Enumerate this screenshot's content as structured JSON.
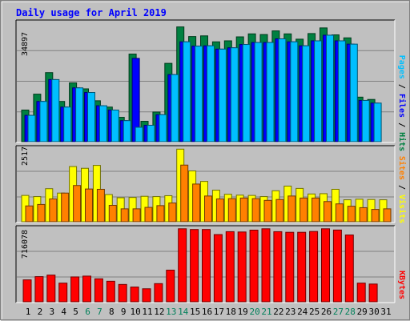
{
  "chart_data": {
    "type": "bar",
    "title": "Daily usage for April 2019",
    "categories": [
      "1",
      "2",
      "3",
      "4",
      "5",
      "6",
      "7",
      "8",
      "9",
      "10",
      "11",
      "12",
      "13",
      "14",
      "15",
      "16",
      "17",
      "18",
      "19",
      "20",
      "21",
      "22",
      "23",
      "24",
      "25",
      "26",
      "27",
      "28",
      "29",
      "30",
      "31"
    ],
    "weekend_days": [
      "6",
      "7",
      "13",
      "14",
      "20",
      "21",
      "27",
      "28"
    ],
    "panels": [
      {
        "id": "hits_files_pages",
        "ylim": [
          0,
          36500
        ],
        "max_tick_label": "34897",
        "axis_label": [
          {
            "text": "Pages",
            "color": "#00bfff"
          },
          {
            "text": " / ",
            "color": "#000000"
          },
          {
            "text": "Files",
            "color": "#0000ff"
          },
          {
            "text": " / ",
            "color": "#000000"
          },
          {
            "text": "Hits",
            "color": "#008040"
          }
        ],
        "series": [
          {
            "name": "Hits",
            "color": "#008040",
            "values": [
              9800,
              14600,
              21100,
              12400,
              18000,
              16200,
              12600,
              10700,
              7600,
              26700,
              6400,
              9200,
              23900,
              34897,
              32000,
              32200,
              30400,
              30700,
              31900,
              32800,
              32600,
              33700,
              32800,
              31200,
              32900,
              34600,
              32500,
              31600,
              13700,
              13000,
              0
            ]
          },
          {
            "name": "Files",
            "color": "#0000ff",
            "values": [
              8200,
              12400,
              19000,
              10700,
              16500,
              15100,
              11100,
              9800,
              6600,
              25400,
              5200,
              8400,
              20500,
              30400,
              29100,
              29200,
              28200,
              28600,
              29600,
              30200,
              30200,
              31300,
              30400,
              29200,
              30700,
              32400,
              30700,
              29700,
              12700,
              11900,
              0
            ]
          },
          {
            "name": "Pages",
            "color": "#00bfff",
            "values": [
              8200,
              12400,
              19000,
              10700,
              16500,
              15100,
              11100,
              9800,
              6600,
              4600,
              5200,
              8400,
              20500,
              30400,
              29100,
              29200,
              28200,
              28600,
              29600,
              30200,
              30200,
              31300,
              30400,
              29200,
              30700,
              32400,
              30700,
              29700,
              12700,
              11900,
              0
            ]
          }
        ]
      },
      {
        "id": "visits_sites",
        "ylim": [
          0,
          2580
        ],
        "max_tick_label": "2517",
        "axis_label": [
          {
            "text": "Sites",
            "color": "#ff8000"
          },
          {
            "text": " / ",
            "color": "#000000"
          },
          {
            "text": "Visits",
            "color": "#ffff00"
          }
        ],
        "series": [
          {
            "name": "Visits",
            "color": "#ffff00",
            "values": [
              930,
              890,
              1160,
              1010,
              1920,
              1860,
              1960,
              960,
              850,
              860,
              900,
              890,
              920,
              2517,
              1770,
              1410,
              1110,
              970,
              940,
              930,
              890,
              1090,
              1250,
              1170,
              980,
              990,
              1140,
              780,
              800,
              790,
              780
            ]
          },
          {
            "name": "Sites",
            "color": "#ff8000",
            "values": [
              570,
              620,
              810,
              1010,
              1270,
              1150,
              1140,
              590,
              470,
              470,
              520,
              580,
              670,
              1970,
              1320,
              910,
              810,
              820,
              840,
              820,
              760,
              790,
              910,
              840,
              840,
              720,
              640,
              560,
              510,
              450,
              470
            ]
          }
        ]
      },
      {
        "id": "kbytes",
        "ylim": [
          0,
          730000
        ],
        "max_tick_label": "716078",
        "axis_label": [
          {
            "text": "KBytes",
            "color": "#ff0000"
          }
        ],
        "series": [
          {
            "name": "KBytes",
            "color": "#ff0000",
            "values": [
              220500,
              252000,
              267000,
              189000,
              249000,
              257000,
              231000,
              207000,
              176000,
              151000,
              134000,
              184000,
              315000,
              716078,
              709000,
              709000,
              660000,
              688000,
              685000,
              703000,
              716078,
              688000,
              682000,
              682000,
              690000,
              716078,
              704000,
              656000,
              189000,
              180000,
              0
            ]
          }
        ]
      }
    ]
  }
}
